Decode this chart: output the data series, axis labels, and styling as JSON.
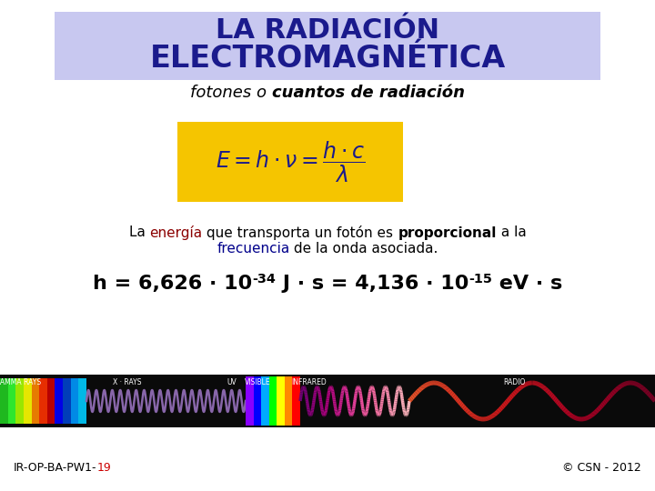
{
  "bg_color": "#ffffff",
  "title_bg_color": "#c8c8f0",
  "title_line1": "LA RADIACIÓN",
  "title_line2": "ELECTROMAGNÉTICA",
  "subtitle_normal": "fotones o ",
  "subtitle_bold_italic": "cuantos de radiación",
  "formula_bg": "#f5c500",
  "body_line1": [
    [
      "La ",
      "#000000",
      false,
      false
    ],
    [
      "energía",
      "#8b0000",
      false,
      false
    ],
    [
      " que transporta un fotón es ",
      "#000000",
      false,
      false
    ],
    [
      "proporcional",
      "#000000",
      true,
      false
    ],
    [
      " a la",
      "#000000",
      false,
      false
    ]
  ],
  "body_line2": [
    [
      "frecuencia",
      "#00008b",
      false,
      false
    ],
    [
      " de la onda asociada.",
      "#000000",
      false,
      false
    ]
  ],
  "footer_left1": "IR-OP-BA-PW1-",
  "footer_left2": "19",
  "footer_right": "© CSN - 2012",
  "title_color": "#1a1a8c",
  "body_fontsize": 11,
  "planck_fontsize": 16
}
